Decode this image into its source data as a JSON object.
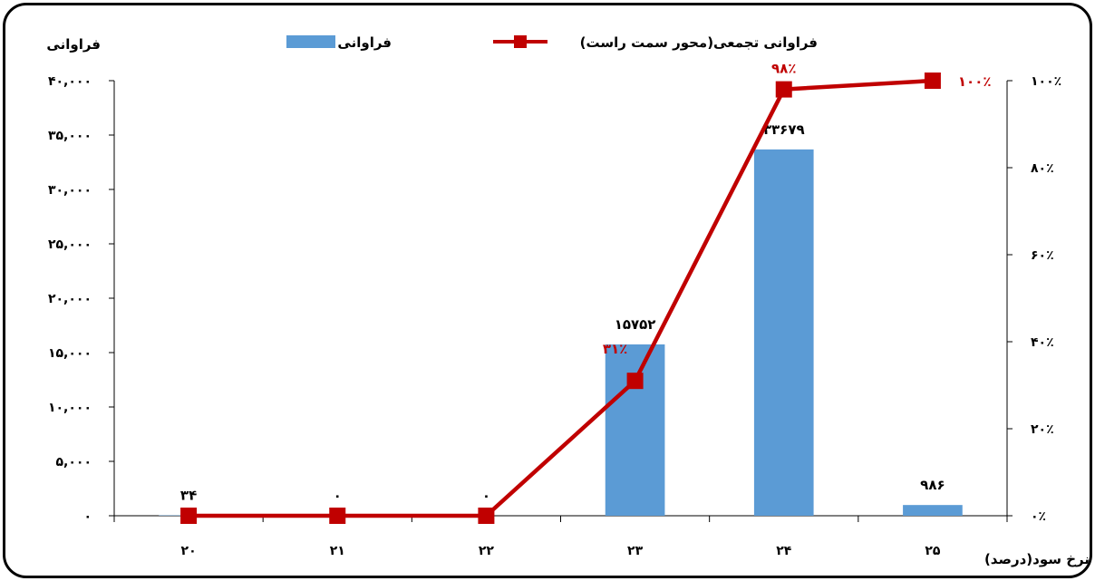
{
  "chart_data": {
    "type": "bar",
    "categories": [
      "۲۰",
      "۲۱",
      "۲۲",
      "۲۳",
      "۲۴",
      "۲۵"
    ],
    "series": [
      {
        "name": "فراوانی",
        "type": "bar",
        "axis": "left",
        "values": [
          34,
          0,
          0,
          15752,
          33679,
          986
        ],
        "data_labels": [
          "۳۴",
          "۰",
          "۰",
          "۱۵۷۵۲",
          "۳۳۶۷۹",
          "۹۸۶"
        ],
        "color": "#5b9bd5"
      },
      {
        "name": "فراوانی تجمعی(محور سمت راست)",
        "type": "line",
        "axis": "right",
        "values": [
          0,
          0,
          0,
          31,
          98,
          100
        ],
        "data_labels": [
          "",
          "",
          "",
          "۳۱٪",
          "۹۸٪",
          "۱۰۰٪"
        ],
        "color": "#c00000"
      }
    ],
    "ylabel": "فراوانی",
    "xlabel": "نرخ سود(درصد)",
    "ylim": [
      0,
      40000
    ],
    "y_ticks": [
      0,
      5000,
      10000,
      15000,
      20000,
      25000,
      30000,
      35000,
      40000
    ],
    "y_tick_labels": [
      "۰",
      "۵,۰۰۰",
      "۱۰,۰۰۰",
      "۱۵,۰۰۰",
      "۲۰,۰۰۰",
      "۲۵,۰۰۰",
      "۳۰,۰۰۰",
      "۳۵,۰۰۰",
      "۴۰,۰۰۰"
    ],
    "y2lim": [
      0,
      100
    ],
    "y2_ticks": [
      0,
      20,
      40,
      60,
      80,
      100
    ],
    "y2_tick_labels": [
      "۰٪",
      "۲۰٪",
      "۴۰٪",
      "۶۰٪",
      "۸۰٪",
      "۱۰۰٪"
    ],
    "grid": false,
    "legend_position": "top"
  }
}
